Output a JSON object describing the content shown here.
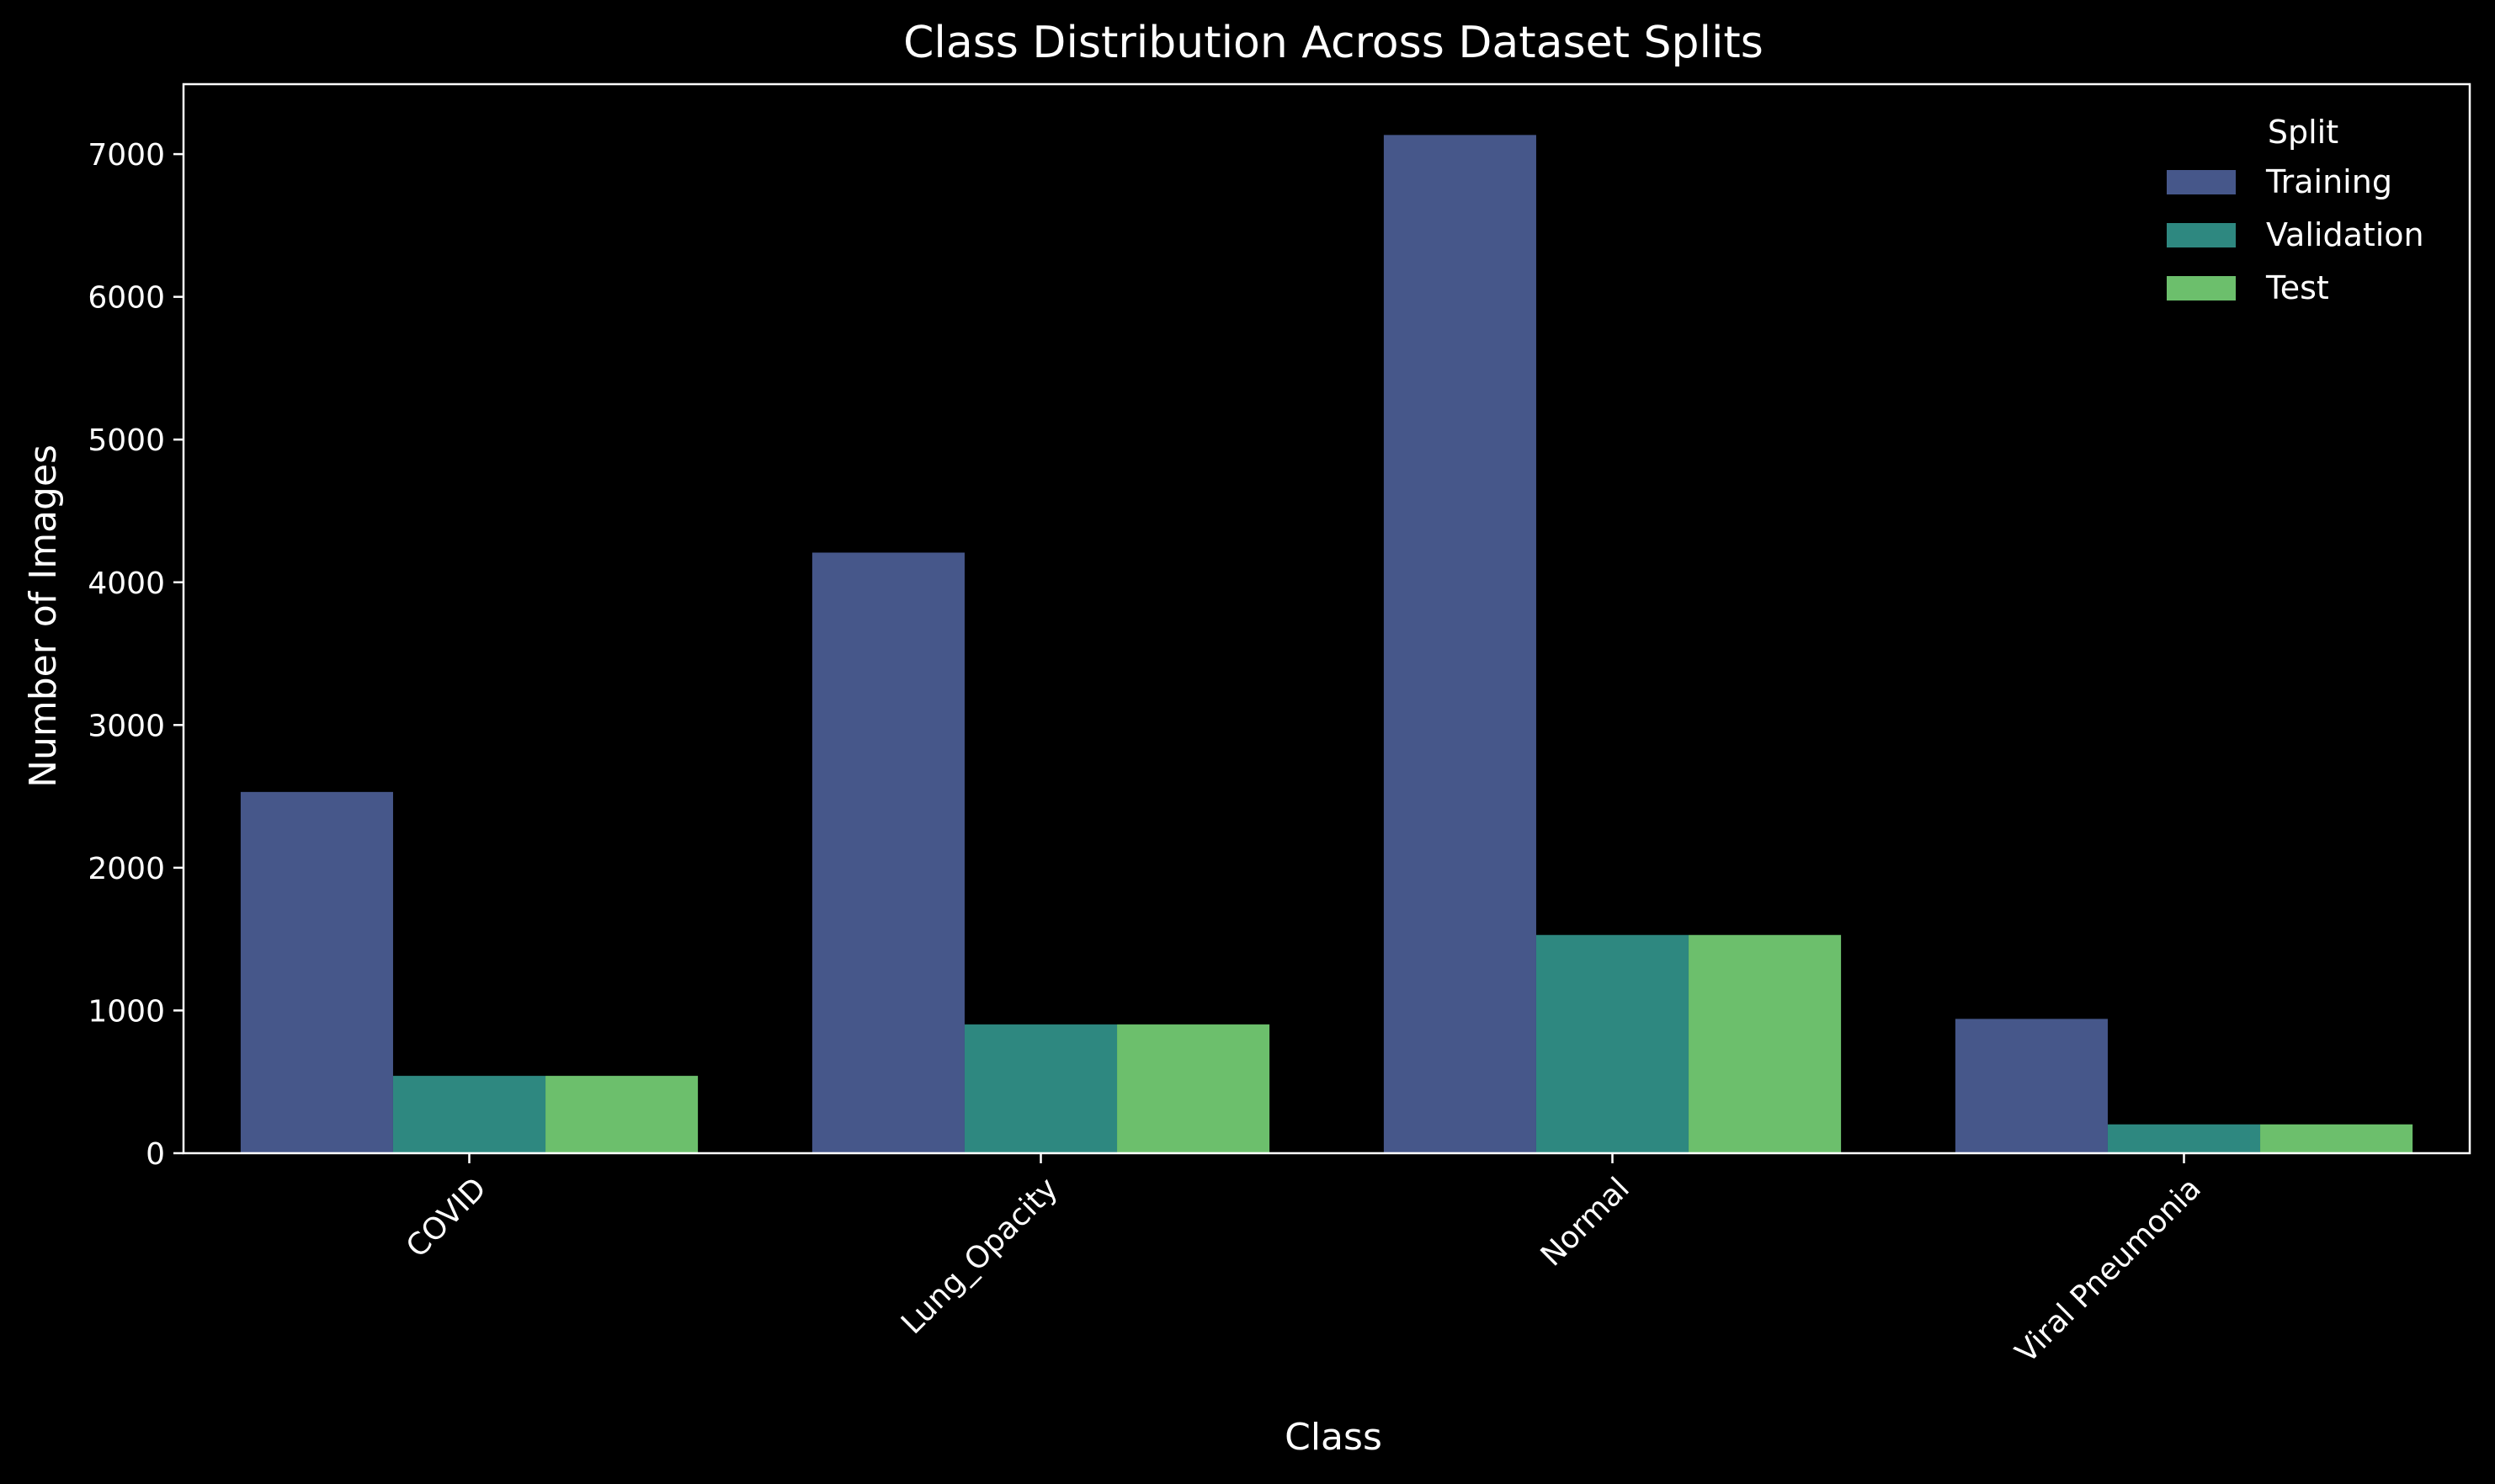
{
  "chart_data": {
    "type": "bar",
    "title": "Class Distribution Across Dataset Splits",
    "xlabel": "Class",
    "ylabel": "Number of Images",
    "categories": [
      "COVID",
      "Lung_Opacity",
      "Normal",
      "Viral Pneumonia"
    ],
    "series": [
      {
        "name": "Training",
        "color": "#46578a",
        "values": [
          2531,
          4208,
          7134,
          941
        ]
      },
      {
        "name": "Validation",
        "color": "#2e8880",
        "values": [
          542,
          902,
          1529,
          202
        ]
      },
      {
        "name": "Test",
        "color": "#6cbf6c",
        "values": [
          542,
          902,
          1529,
          202
        ]
      }
    ],
    "ylim": [
      0,
      7490
    ],
    "yticks": [
      0,
      1000,
      2000,
      3000,
      4000,
      5000,
      6000,
      7000
    ],
    "grid": false,
    "legend": {
      "title": "Split",
      "placement": "top-right"
    }
  }
}
